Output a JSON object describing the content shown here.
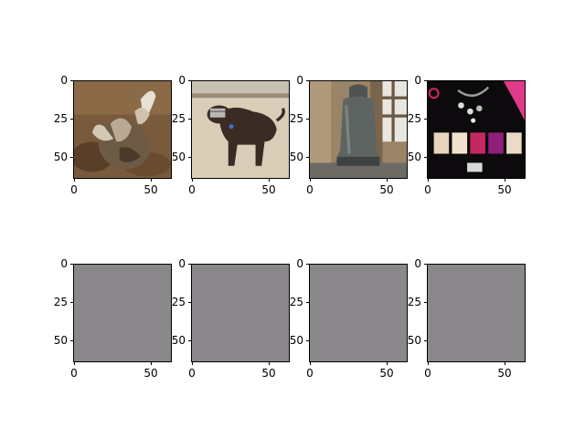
{
  "figure": {
    "rows": 2,
    "cols": 4,
    "image_size": 64,
    "y_ticks": [
      "0",
      "25",
      "50"
    ],
    "x_ticks": [
      "0",
      "50"
    ],
    "blank_color": "#8a888b",
    "panels": [
      {
        "row": 0,
        "col": 0,
        "content": "photo",
        "subject": "goat-lying-on-dirt"
      },
      {
        "row": 0,
        "col": 1,
        "content": "photo",
        "subject": "dark-dog-with-muzzle-on-sand"
      },
      {
        "row": 0,
        "col": 2,
        "content": "photo",
        "subject": "large-bronze-bell"
      },
      {
        "row": 0,
        "col": 3,
        "content": "photo",
        "subject": "jewelry-and-colored-tiles-on-black"
      },
      {
        "row": 1,
        "col": 0,
        "content": "blank"
      },
      {
        "row": 1,
        "col": 1,
        "content": "blank"
      },
      {
        "row": 1,
        "col": 2,
        "content": "blank"
      },
      {
        "row": 1,
        "col": 3,
        "content": "blank"
      }
    ]
  }
}
